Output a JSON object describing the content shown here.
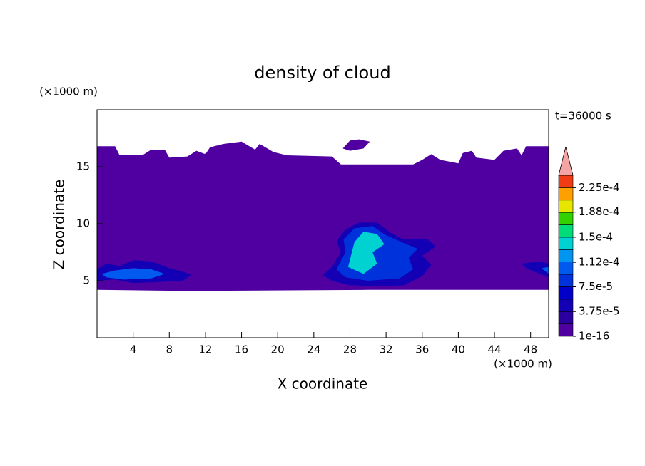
{
  "chart_data": {
    "type": "contour",
    "title": "density of cloud",
    "xlabel": "X coordinate",
    "ylabel": "Z coordinate",
    "x_unit": "(×1000 m)",
    "y_unit": "(×1000 m)",
    "annotation": "t=36000 s",
    "xlim": [
      0,
      50
    ],
    "ylim": [
      0,
      20
    ],
    "xticks": [
      4,
      8,
      12,
      16,
      20,
      24,
      28,
      32,
      36,
      40,
      44,
      48
    ],
    "yticks": [
      5,
      10,
      15
    ],
    "colorbar": {
      "clim": [
        1e-16,
        0.00024375
      ],
      "ticks": [
        {
          "value": 1e-16,
          "label": "1e-16"
        },
        {
          "value": 3.75e-05,
          "label": "3.75e-5"
        },
        {
          "value": 7.5e-05,
          "label": "7.5e-5"
        },
        {
          "value": 0.000112,
          "label": "1.12e-4"
        },
        {
          "value": 0.00015,
          "label": "1.5e-4"
        },
        {
          "value": 0.000188,
          "label": "1.88e-4"
        },
        {
          "value": 0.000225,
          "label": "2.25e-4"
        }
      ],
      "colors": [
        "#5000a0",
        "#2a00a0",
        "#1400b4",
        "#0000c8",
        "#0032dc",
        "#005af0",
        "#0096f0",
        "#00d2d2",
        "#00dc78",
        "#32d200",
        "#e6e600",
        "#ffa000",
        "#f03c14"
      ],
      "extend_color": "#f4a4a4"
    },
    "regions": [
      {
        "level": 0,
        "x": [
          0,
          2,
          2.5,
          5,
          6,
          7.5,
          8,
          10,
          11,
          12,
          12.5,
          14,
          16,
          17.5,
          18,
          19.5,
          21,
          26,
          27,
          35,
          36,
          37,
          38,
          40,
          40.5,
          41.5,
          42,
          44,
          45,
          46.5,
          47,
          47.5,
          50,
          50,
          30,
          10,
          0
        ],
        "z": [
          16.8,
          16.8,
          16.0,
          16.0,
          16.5,
          16.5,
          15.8,
          15.9,
          16.4,
          16.1,
          16.7,
          17.0,
          17.2,
          16.5,
          17.0,
          16.3,
          16.0,
          15.9,
          15.2,
          15.2,
          15.6,
          16.1,
          15.6,
          15.3,
          16.2,
          16.4,
          15.8,
          15.6,
          16.4,
          16.6,
          16.0,
          16.8,
          16.8,
          4.2,
          4.2,
          4.1,
          4.2
        ]
      },
      {
        "level": 0,
        "x": [
          27.2,
          28,
          29,
          30.2,
          29.5,
          28
        ],
        "z": [
          16.6,
          17.3,
          17.4,
          17.2,
          16.6,
          16.4
        ]
      },
      {
        "level": 2,
        "x": [
          0,
          1,
          2.5,
          4,
          6,
          8,
          9.5,
          10.5,
          9.5,
          7,
          4,
          2,
          0
        ],
        "z": [
          6.0,
          6.5,
          6.3,
          6.8,
          6.7,
          6.1,
          5.8,
          5.5,
          5.0,
          4.9,
          4.8,
          5.1,
          5.0
        ]
      },
      {
        "level": 5,
        "x": [
          0.5,
          2,
          4,
          6,
          7.5,
          6,
          3,
          1
        ],
        "z": [
          5.6,
          5.9,
          6.1,
          6.0,
          5.6,
          5.2,
          5.1,
          5.3
        ]
      },
      {
        "level": 2,
        "x": [
          25,
          26,
          27,
          26.5,
          27.5,
          29,
          31,
          32.5,
          34,
          36.5,
          37.5,
          36,
          37,
          36,
          34,
          31,
          28,
          26
        ],
        "z": [
          5.5,
          6.2,
          7.5,
          8.5,
          9.5,
          10.1,
          10.1,
          9.2,
          8.6,
          8.7,
          8.0,
          7.2,
          6.4,
          5.4,
          4.6,
          4.5,
          4.6,
          5.0
        ]
      },
      {
        "level": 4,
        "x": [
          26.5,
          27.5,
          27.3,
          28.5,
          30.5,
          32,
          34,
          35.5,
          34.5,
          35,
          33.5,
          30,
          27.5
        ],
        "z": [
          6.0,
          7.5,
          8.6,
          9.6,
          9.8,
          9.0,
          8.3,
          7.8,
          7.0,
          6.0,
          5.2,
          5.0,
          5.3
        ]
      },
      {
        "level": 7,
        "x": [
          27.8,
          28.5,
          29.5,
          31,
          31.8,
          30.5,
          31,
          29.5
        ],
        "z": [
          6.2,
          8.4,
          9.3,
          9.1,
          8.2,
          7.5,
          6.5,
          5.6
        ]
      },
      {
        "level": 2,
        "x": [
          47,
          49,
          50,
          50,
          49,
          47.5
        ],
        "z": [
          6.5,
          6.7,
          6.5,
          5.3,
          5.6,
          6.1
        ]
      },
      {
        "level": 5,
        "x": [
          49.2,
          50,
          50
        ],
        "z": [
          6.1,
          6.2,
          5.6
        ]
      }
    ]
  }
}
